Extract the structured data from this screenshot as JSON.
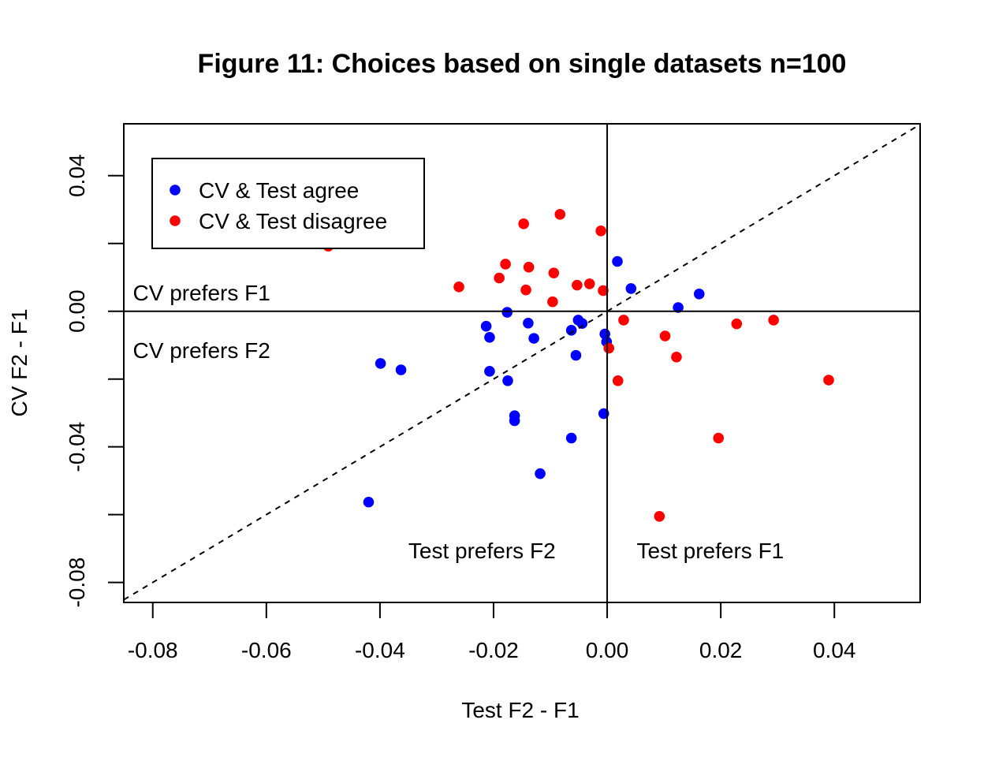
{
  "chart_data": {
    "type": "scatter",
    "title": "Figure 11: Choices based on single datasets n=100",
    "xlabel": "Test F2 - F1",
    "ylabel": "CV F2 - F1",
    "xlim": [
      -0.0851,
      0.0551
    ],
    "ylim": [
      -0.0859,
      0.0553
    ],
    "x_ticks": [
      -0.08,
      -0.06,
      -0.04,
      -0.02,
      0.0,
      0.02,
      0.04
    ],
    "x_tick_labels": [
      "-0.08",
      "-0.06",
      "-0.04",
      "-0.02",
      "0.00",
      "0.02",
      "0.04"
    ],
    "y_ticks": [
      -0.08,
      -0.06,
      -0.04,
      -0.02,
      0.0,
      0.02,
      0.04
    ],
    "y_tick_labels": [
      "-0.08",
      "",
      "-0.04",
      "",
      "0.00",
      "",
      "0.04"
    ],
    "grid": false,
    "reference_lines": {
      "horizontal_at": 0,
      "vertical_at": 0,
      "diagonal": "y = x (dashed)"
    },
    "annotations": [
      {
        "text": "CV prefers F1",
        "x": -0.0835,
        "y": 0.0055
      },
      {
        "text": "CV prefers F2",
        "x": -0.0835,
        "y": -0.0115
      },
      {
        "text": "Test prefers F2",
        "x": -0.035,
        "y": -0.0705
      },
      {
        "text": "Test prefers F1",
        "x": 0.0052,
        "y": -0.0705
      }
    ],
    "legend": {
      "position": "top-left",
      "entries": [
        {
          "label": "CV & Test agree",
          "color": "#0000ff"
        },
        {
          "label": "CV & Test disagree",
          "color": "#ff0000"
        }
      ]
    },
    "series": [
      {
        "name": "CV & Test agree",
        "color": "#0000ff",
        "points": [
          [
            0.0018,
            0.0147
          ],
          [
            0.0042,
            0.0067
          ],
          [
            0.0162,
            0.0051
          ],
          [
            0.0125,
            0.0011
          ],
          [
            -0.0176,
            -0.0003
          ],
          [
            -0.0213,
            -0.0044
          ],
          [
            -0.0207,
            -0.0077
          ],
          [
            -0.0139,
            -0.0035
          ],
          [
            -0.0129,
            -0.008
          ],
          [
            -0.0051,
            -0.0026
          ],
          [
            -0.0044,
            -0.0036
          ],
          [
            -0.0063,
            -0.0056
          ],
          [
            -0.0004,
            -0.0067
          ],
          [
            -0.0001,
            -0.009
          ],
          [
            -0.0055,
            -0.013
          ],
          [
            -0.0207,
            -0.0177
          ],
          [
            -0.0175,
            -0.0205
          ],
          [
            -0.0399,
            -0.0154
          ],
          [
            -0.0363,
            -0.0173
          ],
          [
            -0.0163,
            -0.0308
          ],
          [
            -0.0163,
            -0.0323
          ],
          [
            -0.0006,
            -0.0302
          ],
          [
            -0.0063,
            -0.0374
          ],
          [
            -0.0118,
            -0.0479
          ],
          [
            -0.042,
            -0.0563
          ]
        ]
      },
      {
        "name": "CV & Test disagree",
        "color": "#ff0000",
        "points": [
          [
            -0.0491,
            0.0192
          ],
          [
            -0.0261,
            0.0072
          ],
          [
            -0.0147,
            0.0258
          ],
          [
            -0.0083,
            0.0286
          ],
          [
            -0.0011,
            0.0237
          ],
          [
            -0.0179,
            0.0139
          ],
          [
            -0.0138,
            0.013
          ],
          [
            -0.019,
            0.0098
          ],
          [
            -0.0094,
            0.0113
          ],
          [
            -0.0143,
            0.0063
          ],
          [
            -0.0053,
            0.0077
          ],
          [
            -0.0031,
            0.0081
          ],
          [
            -0.0007,
            0.0061
          ],
          [
            -0.0096,
            0.0028
          ],
          [
            0.0029,
            -0.0026
          ],
          [
            0.0003,
            -0.0109
          ],
          [
            0.0019,
            -0.0205
          ],
          [
            0.0102,
            -0.0073
          ],
          [
            0.0122,
            -0.0135
          ],
          [
            0.0228,
            -0.0037
          ],
          [
            0.0293,
            -0.0026
          ],
          [
            0.039,
            -0.0203
          ],
          [
            0.0196,
            -0.0374
          ],
          [
            0.0092,
            -0.0605
          ]
        ]
      }
    ]
  }
}
